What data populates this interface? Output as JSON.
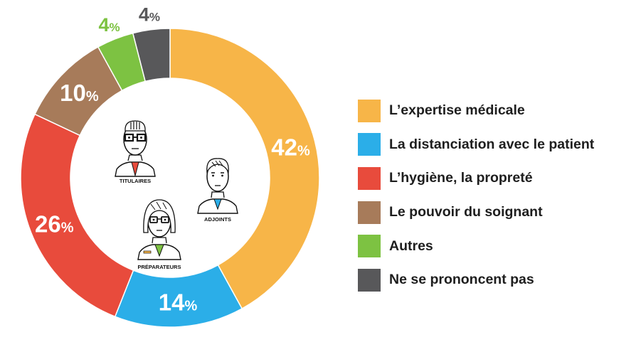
{
  "chart_data": {
    "type": "pie",
    "categories": [
      "L’expertise médicale",
      "La distanciation avec le patient",
      "L’hygiène, la propreté",
      "Le pouvoir du soignant",
      "Autres",
      "Ne se prononcent pas"
    ],
    "values": [
      42,
      14,
      26,
      10,
      4,
      4
    ],
    "value_labels": [
      "42",
      "14",
      "26",
      "10",
      "4",
      "4"
    ],
    "unit": "%",
    "colors": [
      "#F7B548",
      "#2BAEE8",
      "#E84B3C",
      "#A77B5A",
      "#7DC242",
      "#58585A"
    ],
    "legend_position": "right",
    "donut": true
  },
  "center_illustration": {
    "labels": [
      "TITULAIRES",
      "ADJOINTS",
      "PRÉPARATEURS"
    ]
  }
}
